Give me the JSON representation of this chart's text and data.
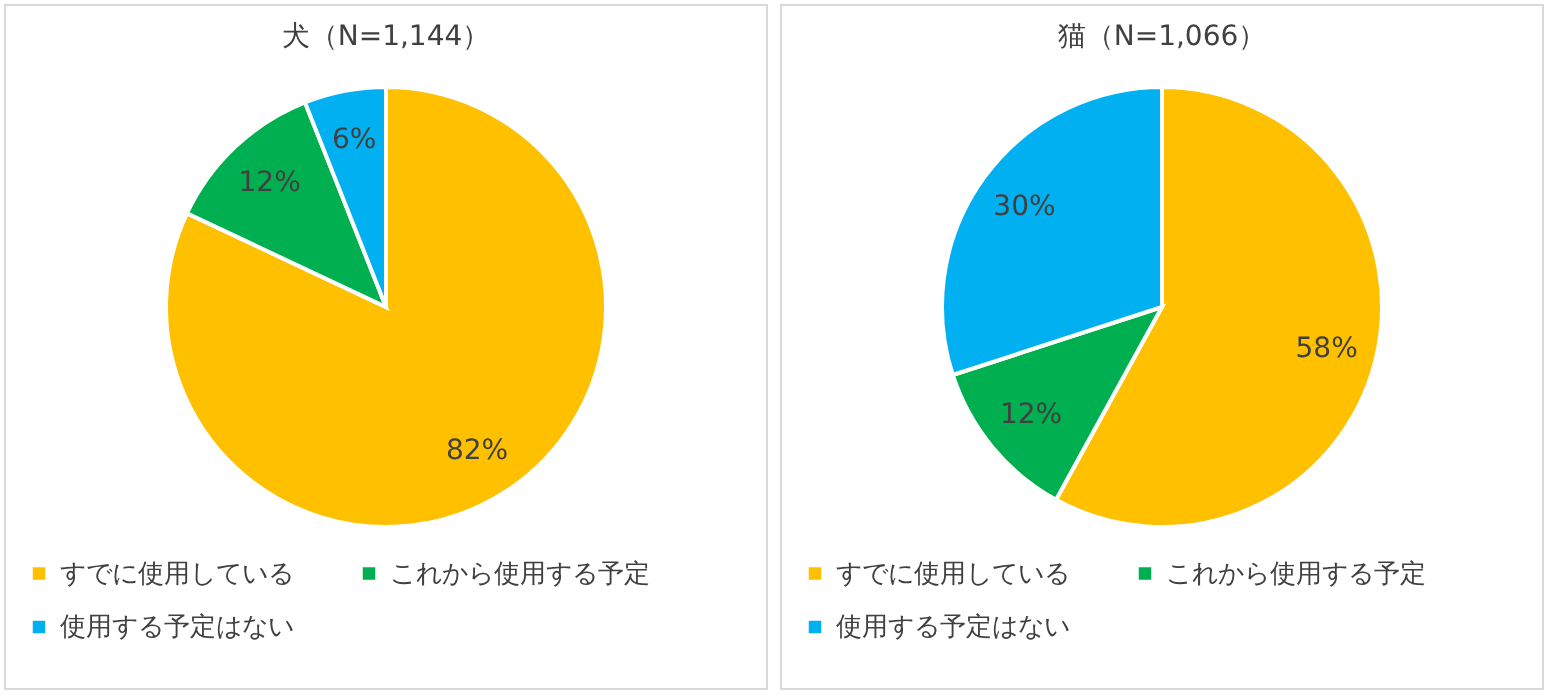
{
  "chart_data": [
    {
      "type": "pie",
      "title": "犬（N=1,144）",
      "categories": [
        "すでに使用している",
        "これから使用する予定",
        "使用する予定はない"
      ],
      "values": [
        82,
        12,
        6
      ],
      "colors": [
        "#ffc000",
        "#00b050",
        "#00b0f0"
      ],
      "value_labels": [
        "82%",
        "12%",
        "6%"
      ],
      "legend": "bottom"
    },
    {
      "type": "pie",
      "title": "猫（N=1,066）",
      "categories": [
        "すでに使用している",
        "これから使用する予定",
        "使用する予定はない"
      ],
      "values": [
        58,
        12,
        30
      ],
      "colors": [
        "#ffc000",
        "#00b050",
        "#00b0f0"
      ],
      "value_labels": [
        "58%",
        "12%",
        "30%"
      ],
      "legend": "bottom"
    }
  ]
}
